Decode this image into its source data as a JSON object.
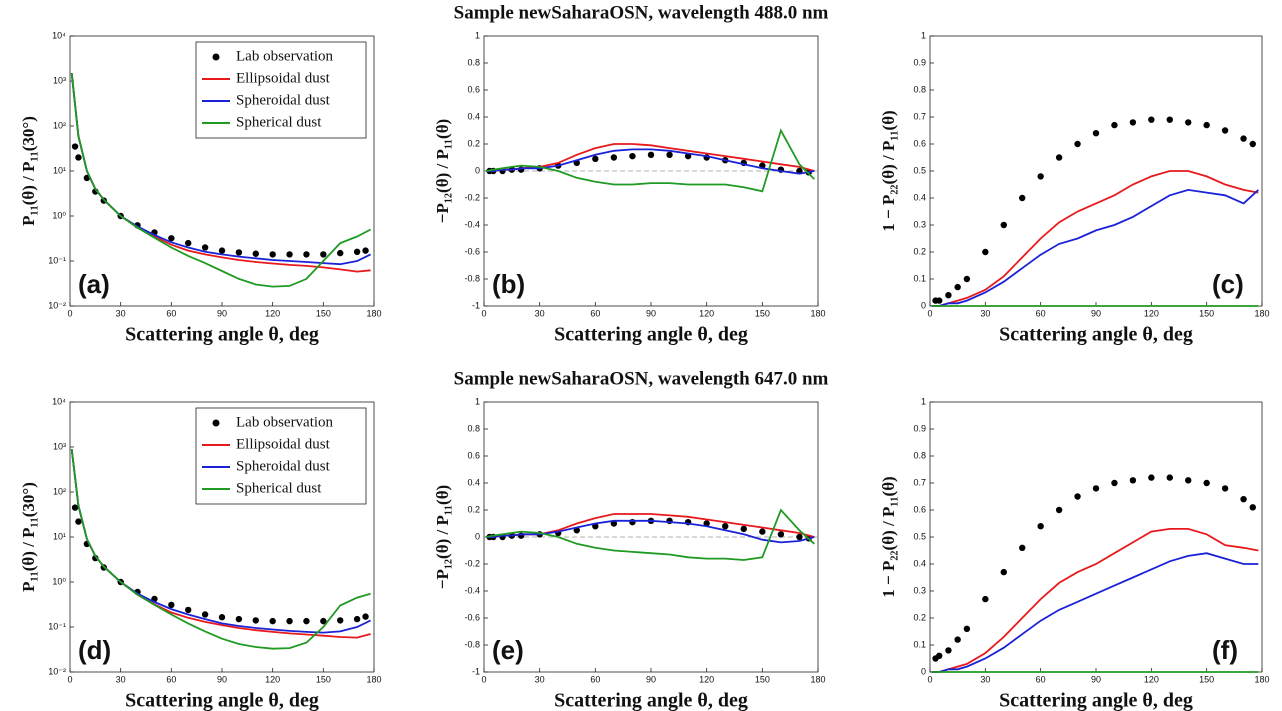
{
  "chart_data": [
    {
      "type": "line",
      "panel_label": "(a)",
      "xlabel": "Scattering angle θ, deg",
      "ylabel": "P₁₁(θ) / P₁₁(30°)",
      "xlim": [
        0,
        180
      ],
      "xticks": [
        0,
        30,
        60,
        90,
        120,
        150,
        180
      ],
      "log_y": true,
      "ylim": [
        0.01,
        10000
      ],
      "yticks": [
        {
          "value": 0.01,
          "label": "10⁻²"
        },
        {
          "value": 0.1,
          "label": "10⁻¹"
        },
        {
          "value": 1,
          "label": "10⁰"
        },
        {
          "value": 10,
          "label": "10¹"
        },
        {
          "value": 100,
          "label": "10²"
        },
        {
          "value": 1000,
          "label": "10³"
        },
        {
          "value": 10000,
          "label": "10⁴"
        }
      ],
      "legend": "upper right",
      "x": [
        1,
        5,
        10,
        15,
        20,
        30,
        40,
        50,
        60,
        70,
        80,
        90,
        100,
        110,
        120,
        130,
        140,
        150,
        160,
        170,
        178
      ],
      "series": [
        {
          "name": "Lab observation",
          "color": "#000000",
          "marker": "dot",
          "x": [
            3,
            5,
            10,
            15,
            20,
            30,
            40,
            50,
            60,
            70,
            80,
            90,
            100,
            110,
            120,
            130,
            140,
            150,
            160,
            170,
            175
          ],
          "values": [
            35,
            20,
            7,
            3.5,
            2.2,
            1.0,
            0.62,
            0.43,
            0.32,
            0.25,
            0.2,
            0.17,
            0.155,
            0.145,
            0.14,
            0.14,
            0.14,
            0.14,
            0.15,
            0.16,
            0.17
          ]
        },
        {
          "name": "Ellipsoidal dust",
          "color": "#e8191c",
          "values": [
            1500,
            60,
            10,
            4,
            2.3,
            1,
            0.55,
            0.35,
            0.23,
            0.17,
            0.14,
            0.12,
            0.105,
            0.095,
            0.088,
            0.082,
            0.078,
            0.072,
            0.065,
            0.058,
            0.062
          ]
        },
        {
          "name": "Spheroidal dust",
          "color": "#1a22d8",
          "values": [
            1500,
            60,
            10,
            4,
            2.3,
            1,
            0.58,
            0.38,
            0.26,
            0.2,
            0.16,
            0.14,
            0.125,
            0.115,
            0.105,
            0.1,
            0.095,
            0.09,
            0.085,
            0.1,
            0.14
          ]
        },
        {
          "name": "Spherical dust",
          "color": "#1f9a22",
          "values": [
            1500,
            60,
            10,
            4,
            2.3,
            1,
            0.55,
            0.33,
            0.2,
            0.13,
            0.09,
            0.06,
            0.04,
            0.03,
            0.027,
            0.028,
            0.04,
            0.1,
            0.25,
            0.35,
            0.5
          ]
        }
      ]
    },
    {
      "type": "line",
      "title": "Sample newSaharaOSN, wavelength 488.0 nm",
      "panel_label": "(b)",
      "xlabel": "Scattering angle θ, deg",
      "ylabel": "−P₁₂(θ) / P₁₁(θ)",
      "xlim": [
        0,
        180
      ],
      "xticks": [
        0,
        30,
        60,
        90,
        120,
        150,
        180
      ],
      "ylim": [
        -1,
        1
      ],
      "yticks": [
        -1,
        -0.8,
        -0.6,
        -0.4,
        -0.2,
        0,
        0.2,
        0.4,
        0.6,
        0.8,
        1
      ],
      "x": [
        1,
        5,
        10,
        15,
        20,
        30,
        40,
        50,
        60,
        70,
        80,
        90,
        100,
        110,
        120,
        130,
        140,
        150,
        160,
        170,
        178
      ],
      "series": [
        {
          "color": "#000000",
          "marker": "dot",
          "x": [
            3,
            5,
            10,
            15,
            20,
            30,
            40,
            50,
            60,
            70,
            80,
            90,
            100,
            110,
            120,
            130,
            140,
            150,
            160,
            170,
            175
          ],
          "values": [
            0,
            0,
            0,
            0.01,
            0.01,
            0.02,
            0.04,
            0.06,
            0.09,
            0.1,
            0.11,
            0.12,
            0.12,
            0.11,
            0.1,
            0.08,
            0.06,
            0.04,
            0.01,
            0,
            -0.01
          ]
        },
        {
          "color": "#e8191c",
          "values": [
            0,
            0,
            0.01,
            0.01,
            0.02,
            0.03,
            0.06,
            0.12,
            0.17,
            0.2,
            0.2,
            0.19,
            0.17,
            0.15,
            0.13,
            0.11,
            0.09,
            0.07,
            0.05,
            0.03,
            0
          ]
        },
        {
          "color": "#1a22d8",
          "values": [
            0,
            0,
            0.01,
            0.01,
            0.02,
            0.02,
            0.04,
            0.08,
            0.12,
            0.15,
            0.16,
            0.16,
            0.15,
            0.13,
            0.11,
            0.08,
            0.05,
            0.02,
            0,
            -0.02,
            0
          ]
        },
        {
          "color": "#1f9a22",
          "values": [
            0,
            0.01,
            0.02,
            0.03,
            0.04,
            0.03,
            0,
            -0.05,
            -0.08,
            -0.1,
            -0.1,
            -0.09,
            -0.09,
            -0.1,
            -0.1,
            -0.1,
            -0.12,
            -0.15,
            0.3,
            0.05,
            -0.06
          ]
        }
      ]
    },
    {
      "type": "line",
      "panel_label": "(c)",
      "xlabel": "Scattering angle θ, deg",
      "ylabel": "1 − P₂₂(θ) / P₁₁(θ)",
      "xlim": [
        0,
        180
      ],
      "xticks": [
        0,
        30,
        60,
        90,
        120,
        150,
        180
      ],
      "ylim": [
        0,
        1
      ],
      "yticks": [
        0,
        0.1,
        0.2,
        0.3,
        0.4,
        0.5,
        0.6,
        0.7,
        0.8,
        0.9,
        1
      ],
      "x": [
        1,
        5,
        10,
        15,
        20,
        30,
        40,
        50,
        60,
        70,
        80,
        90,
        100,
        110,
        120,
        130,
        140,
        150,
        160,
        170,
        178
      ],
      "series": [
        {
          "color": "#000000",
          "marker": "dot",
          "x": [
            3,
            5,
            10,
            15,
            20,
            30,
            40,
            50,
            60,
            70,
            80,
            90,
            100,
            110,
            120,
            130,
            140,
            150,
            160,
            170,
            175
          ],
          "values": [
            0.02,
            0.02,
            0.04,
            0.07,
            0.1,
            0.2,
            0.3,
            0.4,
            0.48,
            0.55,
            0.6,
            0.64,
            0.67,
            0.68,
            0.69,
            0.69,
            0.68,
            0.67,
            0.65,
            0.62,
            0.6
          ]
        },
        {
          "color": "#e8191c",
          "values": [
            0,
            0,
            0.01,
            0.02,
            0.03,
            0.06,
            0.11,
            0.18,
            0.25,
            0.31,
            0.35,
            0.38,
            0.41,
            0.45,
            0.48,
            0.5,
            0.5,
            0.48,
            0.45,
            0.43,
            0.42
          ]
        },
        {
          "color": "#1a22d8",
          "values": [
            0,
            0,
            0.01,
            0.01,
            0.02,
            0.05,
            0.09,
            0.14,
            0.19,
            0.23,
            0.25,
            0.28,
            0.3,
            0.33,
            0.37,
            0.41,
            0.43,
            0.42,
            0.41,
            0.38,
            0.43
          ]
        },
        {
          "color": "#1f9a22",
          "values": [
            0,
            0,
            0,
            0,
            0,
            0,
            0,
            0,
            0,
            0,
            0,
            0,
            0,
            0,
            0,
            0,
            0,
            0,
            0,
            0,
            0
          ]
        }
      ]
    },
    {
      "type": "line",
      "panel_label": "(d)",
      "xlabel": "Scattering angle θ, deg",
      "ylabel": "P₁₁(θ) / P₁₁(30°)",
      "xlim": [
        0,
        180
      ],
      "xticks": [
        0,
        30,
        60,
        90,
        120,
        150,
        180
      ],
      "log_y": true,
      "ylim": [
        0.01,
        10000
      ],
      "yticks": [
        {
          "value": 0.01,
          "label": "10⁻²"
        },
        {
          "value": 0.1,
          "label": "10⁻¹"
        },
        {
          "value": 1,
          "label": "10⁰"
        },
        {
          "value": 10,
          "label": "10¹"
        },
        {
          "value": 100,
          "label": "10²"
        },
        {
          "value": 1000,
          "label": "10³"
        },
        {
          "value": 10000,
          "label": "10⁴"
        }
      ],
      "legend": "upper right",
      "x": [
        1,
        5,
        10,
        15,
        20,
        30,
        40,
        50,
        60,
        70,
        80,
        90,
        100,
        110,
        120,
        130,
        140,
        150,
        160,
        170,
        178
      ],
      "series": [
        {
          "name": "Lab observation",
          "color": "#000000",
          "marker": "dot",
          "x": [
            3,
            5,
            10,
            15,
            20,
            30,
            40,
            50,
            60,
            70,
            80,
            90,
            100,
            110,
            120,
            130,
            140,
            150,
            160,
            170,
            175
          ],
          "values": [
            45,
            22,
            7,
            3.4,
            2.1,
            1.0,
            0.6,
            0.42,
            0.31,
            0.24,
            0.19,
            0.165,
            0.15,
            0.14,
            0.135,
            0.135,
            0.135,
            0.135,
            0.14,
            0.15,
            0.17
          ]
        },
        {
          "name": "Ellipsoidal dust",
          "color": "#e8191c",
          "values": [
            900,
            50,
            9,
            3.8,
            2.2,
            1,
            0.52,
            0.32,
            0.21,
            0.16,
            0.13,
            0.11,
            0.095,
            0.085,
            0.078,
            0.072,
            0.068,
            0.064,
            0.06,
            0.058,
            0.07
          ]
        },
        {
          "name": "Spheroidal dust",
          "color": "#1a22d8",
          "values": [
            900,
            50,
            9,
            3.8,
            2.2,
            1,
            0.55,
            0.36,
            0.25,
            0.19,
            0.15,
            0.12,
            0.105,
            0.095,
            0.088,
            0.082,
            0.078,
            0.075,
            0.08,
            0.1,
            0.14
          ]
        },
        {
          "name": "Spherical dust",
          "color": "#1f9a22",
          "values": [
            900,
            50,
            9,
            3.8,
            2.2,
            1,
            0.52,
            0.31,
            0.19,
            0.12,
            0.08,
            0.055,
            0.042,
            0.036,
            0.033,
            0.034,
            0.045,
            0.1,
            0.3,
            0.45,
            0.55
          ]
        }
      ]
    },
    {
      "type": "line",
      "title": "Sample newSaharaOSN, wavelength 647.0 nm",
      "panel_label": "(e)",
      "xlabel": "Scattering angle θ, deg",
      "ylabel": "−P₁₂(θ) / P₁₁(θ)",
      "xlim": [
        0,
        180
      ],
      "xticks": [
        0,
        30,
        60,
        90,
        120,
        150,
        180
      ],
      "ylim": [
        -1,
        1
      ],
      "yticks": [
        -1,
        -0.8,
        -0.6,
        -0.4,
        -0.2,
        0,
        0.2,
        0.4,
        0.6,
        0.8,
        1
      ],
      "x": [
        1,
        5,
        10,
        15,
        20,
        30,
        40,
        50,
        60,
        70,
        80,
        90,
        100,
        110,
        120,
        130,
        140,
        150,
        160,
        170,
        178
      ],
      "series": [
        {
          "color": "#000000",
          "marker": "dot",
          "x": [
            3,
            5,
            10,
            15,
            20,
            30,
            40,
            50,
            60,
            70,
            80,
            90,
            100,
            110,
            120,
            130,
            140,
            150,
            160,
            170,
            175
          ],
          "values": [
            0,
            0,
            0,
            0.01,
            0.01,
            0.02,
            0.03,
            0.05,
            0.08,
            0.1,
            0.11,
            0.12,
            0.12,
            0.11,
            0.1,
            0.08,
            0.06,
            0.04,
            0.02,
            0,
            -0.01
          ]
        },
        {
          "color": "#e8191c",
          "values": [
            0,
            0,
            0.01,
            0.01,
            0.02,
            0.02,
            0.05,
            0.1,
            0.14,
            0.17,
            0.17,
            0.17,
            0.16,
            0.15,
            0.13,
            0.11,
            0.09,
            0.07,
            0.05,
            0.03,
            0
          ]
        },
        {
          "color": "#1a22d8",
          "values": [
            0,
            0,
            0.01,
            0.01,
            0.02,
            0.02,
            0.04,
            0.07,
            0.1,
            0.12,
            0.12,
            0.12,
            0.11,
            0.1,
            0.08,
            0.05,
            0.02,
            -0.02,
            -0.04,
            -0.03,
            0
          ]
        },
        {
          "color": "#1f9a22",
          "values": [
            0,
            0.01,
            0.02,
            0.03,
            0.04,
            0.03,
            0,
            -0.05,
            -0.08,
            -0.1,
            -0.11,
            -0.12,
            -0.13,
            -0.15,
            -0.16,
            -0.16,
            -0.17,
            -0.15,
            0.2,
            0.05,
            -0.05
          ]
        }
      ]
    },
    {
      "type": "line",
      "panel_label": "(f)",
      "xlabel": "Scattering angle θ, deg",
      "ylabel": "1 − P₂₂(θ) / P₁₁(θ)",
      "xlim": [
        0,
        180
      ],
      "xticks": [
        0,
        30,
        60,
        90,
        120,
        150,
        180
      ],
      "ylim": [
        0,
        1
      ],
      "yticks": [
        0,
        0.1,
        0.2,
        0.3,
        0.4,
        0.5,
        0.6,
        0.7,
        0.8,
        0.9,
        1
      ],
      "x": [
        1,
        5,
        10,
        15,
        20,
        30,
        40,
        50,
        60,
        70,
        80,
        90,
        100,
        110,
        120,
        130,
        140,
        150,
        160,
        170,
        178
      ],
      "series": [
        {
          "color": "#000000",
          "marker": "dot",
          "x": [
            3,
            5,
            10,
            15,
            20,
            30,
            40,
            50,
            60,
            70,
            80,
            90,
            100,
            110,
            120,
            130,
            140,
            150,
            160,
            170,
            175
          ],
          "values": [
            0.05,
            0.06,
            0.08,
            0.12,
            0.16,
            0.27,
            0.37,
            0.46,
            0.54,
            0.6,
            0.65,
            0.68,
            0.7,
            0.71,
            0.72,
            0.72,
            0.71,
            0.7,
            0.68,
            0.64,
            0.61
          ]
        },
        {
          "color": "#e8191c",
          "values": [
            0,
            0,
            0.01,
            0.02,
            0.03,
            0.07,
            0.13,
            0.2,
            0.27,
            0.33,
            0.37,
            0.4,
            0.44,
            0.48,
            0.52,
            0.53,
            0.53,
            0.51,
            0.47,
            0.46,
            0.45
          ]
        },
        {
          "color": "#1a22d8",
          "values": [
            0,
            0,
            0.01,
            0.01,
            0.02,
            0.05,
            0.09,
            0.14,
            0.19,
            0.23,
            0.26,
            0.29,
            0.32,
            0.35,
            0.38,
            0.41,
            0.43,
            0.44,
            0.42,
            0.4,
            0.4
          ]
        },
        {
          "color": "#1f9a22",
          "values": [
            0,
            0,
            0,
            0,
            0,
            0,
            0,
            0,
            0,
            0,
            0,
            0,
            0,
            0,
            0,
            0,
            0,
            0,
            0,
            0,
            0
          ]
        }
      ]
    }
  ]
}
